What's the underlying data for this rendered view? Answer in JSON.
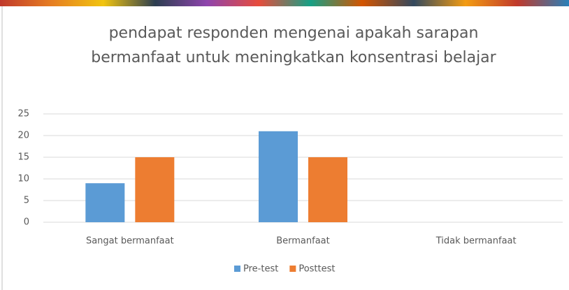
{
  "chart_data": {
    "type": "bar",
    "title": "pendapat responden mengenai apakah sarapan bermanfaat untuk meningkatkan konsentrasi belajar",
    "categories": [
      "Sangat bermanfaat",
      "Bermanfaat",
      "Tidak bermanfaat"
    ],
    "series": [
      {
        "name": "Pre-test",
        "color": "#5b9bd5",
        "values": [
          9,
          21,
          0
        ]
      },
      {
        "name": "Posttest",
        "color": "#ed7d31",
        "values": [
          15,
          15,
          0
        ]
      }
    ],
    "ylim": [
      0,
      25
    ],
    "yticks": [
      0,
      5,
      10,
      15,
      20,
      25
    ],
    "grid": true,
    "legend": "bottom"
  }
}
